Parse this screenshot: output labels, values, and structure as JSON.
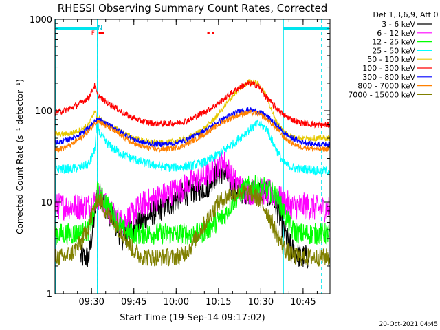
{
  "chart_data": {
    "type": "line",
    "title": "RHESSI Observing Summary Count Rates, Corrected",
    "ylabel": "Corrected Count Rate (s⁻¹ detector⁻¹)",
    "xlabel": "Start Time (19-Sep-14 09:17:02)",
    "yscale": "log",
    "ylim": [
      1,
      1000
    ],
    "xlim": [
      0,
      97.5
    ],
    "x_units": "minutes after 09:17:02",
    "x_ticks": [
      {
        "x": 12.97,
        "label": "09:30"
      },
      {
        "x": 27.97,
        "label": "09:45"
      },
      {
        "x": 42.97,
        "label": "10:00"
      },
      {
        "x": 57.97,
        "label": "10:15"
      },
      {
        "x": 72.97,
        "label": "10:30"
      },
      {
        "x": 87.97,
        "label": "10:45"
      }
    ],
    "y_ticks": [
      {
        "v": 1,
        "label": "1"
      },
      {
        "v": 10,
        "label": "10"
      },
      {
        "v": 100,
        "label": "100"
      },
      {
        "v": 1000,
        "label": "1000"
      }
    ],
    "legend_header": "Det 1,3,6,9, Att 0",
    "legend_placement": "right",
    "x_samples": [
      0,
      3,
      6,
      9,
      12,
      14,
      15,
      16,
      18,
      21,
      24,
      27,
      30,
      33,
      36,
      39,
      42,
      45,
      48,
      51,
      54,
      57,
      60,
      63,
      66,
      69,
      72,
      75,
      78,
      81,
      84,
      87,
      90,
      93,
      95,
      97.5
    ],
    "series": [
      {
        "name": "3 - 6 keV",
        "color": "#000000",
        "noise": 0.14,
        "values": [
          null,
          null,
          null,
          2.5,
          2.5,
          7,
          14,
          12,
          9,
          6,
          4,
          5,
          6,
          7,
          8,
          9,
          10,
          12,
          13,
          14,
          15,
          20,
          22,
          14,
          13,
          13,
          13,
          13,
          10,
          5,
          3,
          2.5,
          2.5,
          null,
          null,
          null
        ]
      },
      {
        "name": "6 - 12 keV",
        "color": "#ff00ff",
        "noise": 0.15,
        "values": [
          9,
          9,
          9,
          9,
          9,
          10,
          12,
          11,
          9,
          7,
          6,
          7,
          9,
          10,
          11,
          12,
          13,
          14,
          16,
          18,
          20,
          24,
          27,
          18,
          14,
          13,
          13,
          13,
          12,
          10,
          9,
          9,
          9,
          8.5,
          8.5,
          8.5
        ]
      },
      {
        "name": "12 - 25 keV",
        "color": "#00ff00",
        "noise": 0.12,
        "values": [
          4.5,
          4.5,
          4.5,
          4.5,
          5,
          8,
          13,
          12,
          10,
          7,
          5,
          4.5,
          4.5,
          4.5,
          4.5,
          4.5,
          4.5,
          4.5,
          4.5,
          4.5,
          5,
          6,
          7,
          10,
          13,
          15,
          15,
          14,
          12,
          8,
          5,
          4.5,
          4.5,
          4.5,
          4.5,
          4.5
        ]
      },
      {
        "name": "25 - 50 keV",
        "color": "#00ffff",
        "noise": 0.05,
        "values": [
          23,
          23,
          23,
          24,
          26,
          36,
          75,
          55,
          45,
          38,
          33,
          30,
          28,
          26,
          25,
          24,
          24,
          24,
          25,
          26,
          28,
          32,
          37,
          43,
          52,
          62,
          72,
          64,
          40,
          27,
          24,
          23,
          23,
          22,
          22,
          22
        ]
      },
      {
        "name": "50 - 100 keV",
        "color": "#e6c800",
        "noise": 0.03,
        "values": [
          55,
          55,
          57,
          62,
          70,
          100,
          85,
          80,
          72,
          65,
          58,
          52,
          48,
          46,
          45,
          45,
          46,
          48,
          52,
          58,
          68,
          85,
          110,
          145,
          180,
          210,
          200,
          145,
          80,
          60,
          52,
          50,
          50,
          50,
          50,
          50
        ]
      },
      {
        "name": "100 - 300 keV",
        "color": "#ff0000",
        "noise": 0.035,
        "values": [
          95,
          100,
          108,
          120,
          140,
          190,
          150,
          140,
          125,
          110,
          95,
          85,
          78,
          74,
          72,
          72,
          73,
          75,
          80,
          90,
          100,
          115,
          135,
          160,
          185,
          200,
          190,
          140,
          110,
          90,
          80,
          74,
          72,
          70,
          70,
          70
        ]
      },
      {
        "name": "300 - 800 keV",
        "color": "#0000ff",
        "noise": 0.03,
        "values": [
          45,
          46,
          50,
          56,
          65,
          75,
          80,
          78,
          72,
          65,
          57,
          50,
          46,
          44,
          43,
          43,
          44,
          46,
          50,
          56,
          63,
          72,
          82,
          92,
          100,
          102,
          98,
          88,
          72,
          58,
          50,
          46,
          44,
          43,
          43,
          43
        ]
      },
      {
        "name": "800 - 7000 keV",
        "color": "#ff8000",
        "noise": 0.03,
        "values": [
          38,
          39,
          43,
          50,
          60,
          72,
          78,
          75,
          68,
          60,
          52,
          45,
          41,
          39,
          38,
          38,
          39,
          41,
          45,
          51,
          58,
          67,
          76,
          85,
          92,
          95,
          92,
          82,
          66,
          52,
          44,
          40,
          39,
          38,
          38,
          38
        ]
      },
      {
        "name": "7000 - 15000 keV",
        "color": "#808000",
        "noise": 0.1,
        "values": [
          2.5,
          2.5,
          2.8,
          3.5,
          5.5,
          9,
          11,
          10.5,
          8,
          6,
          4.5,
          3.2,
          2.6,
          2.5,
          2.5,
          2.5,
          2.5,
          2.6,
          3.2,
          4.5,
          6.5,
          9,
          11,
          12.5,
          13,
          12.5,
          11,
          8,
          5,
          3.2,
          2.6,
          2.5,
          2.5,
          2.5,
          2.5,
          2.5
        ]
      }
    ],
    "night_intervals": [
      [
        -2.5,
        15
      ],
      [
        81,
        99
      ]
    ],
    "saa_markers": [
      {
        "x": 15,
        "label": "N"
      }
    ],
    "flare_markers": [
      {
        "x": 13.5,
        "label": "F"
      }
    ],
    "red_segments": [
      [
        15.5,
        17.5
      ],
      [
        54,
        54.8
      ],
      [
        55.6,
        56.4
      ]
    ],
    "footer_date": "20-Oct-2021 04:45"
  }
}
